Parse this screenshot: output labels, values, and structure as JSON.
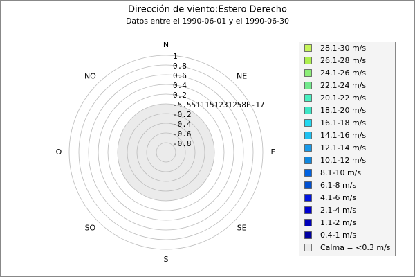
{
  "chart_data": {
    "type": "windrose",
    "title": "Dirección de viento:Estero Derecho",
    "subtitle": "Datos entre el 1990-06-01 y el 1990-06-30",
    "directions": [
      "N",
      "NE",
      "E",
      "SE",
      "S",
      "SO",
      "O",
      "NO"
    ],
    "rlim": [
      -1,
      1
    ],
    "rticks": [
      1,
      0.8,
      0.6,
      0.4,
      0.2,
      {
        "value": -5.5511151231258e-17,
        "label": "-5.5511151231258E-17"
      },
      -0.2,
      -0.4,
      -0.6,
      -0.8
    ],
    "calm_color": "#ebebeb",
    "legend_position": "right",
    "legend": [
      {
        "name": "28.1-30 m/s",
        "color": "#c6f55a"
      },
      {
        "name": "26.1-28 m/s",
        "color": "#adf04f"
      },
      {
        "name": "24.1-26 m/s",
        "color": "#8cee78"
      },
      {
        "name": "22.1-24 m/s",
        "color": "#72e88c"
      },
      {
        "name": "20.1-22 m/s",
        "color": "#48f0c0"
      },
      {
        "name": "18.1-20 m/s",
        "color": "#3ee6c6"
      },
      {
        "name": "16.1-18 m/s",
        "color": "#22d8f0"
      },
      {
        "name": "14.1-16 m/s",
        "color": "#20c0f0"
      },
      {
        "name": "12.1-14 m/s",
        "color": "#189aea"
      },
      {
        "name": "10.1-12 m/s",
        "color": "#1088e0"
      },
      {
        "name": "8.1-10 m/s",
        "color": "#0062e2"
      },
      {
        "name": "6.1-8 m/s",
        "color": "#0050d2"
      },
      {
        "name": "4.1-6 m/s",
        "color": "#0014e0"
      },
      {
        "name": "2.1-4 m/s",
        "color": "#0000d2"
      },
      {
        "name": "1.1-2 m/s",
        "color": "#0000ba"
      },
      {
        "name": "0.4-1 m/s",
        "color": "#0000a2"
      },
      {
        "name": "Calma = <0.3 m/s",
        "color": "#ebebeb"
      }
    ]
  }
}
